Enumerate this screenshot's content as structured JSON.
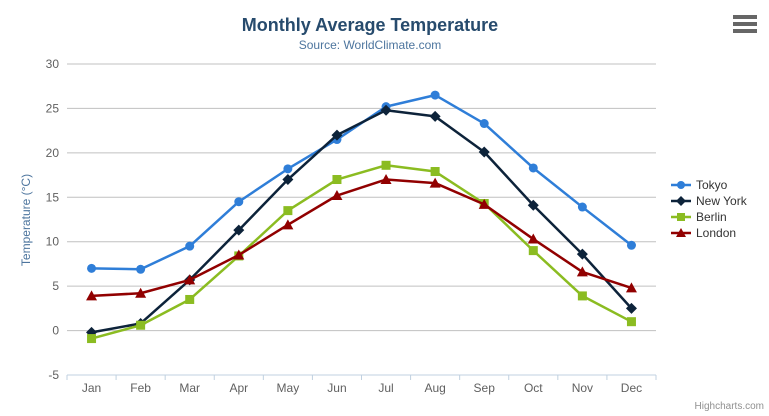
{
  "chart": {
    "title": "Monthly Average Temperature",
    "subtitle": "Source: WorldClimate.com",
    "credits": "Highcharts.com",
    "context_menu_icon": "hamburger-icon"
  },
  "colors": {
    "title": "#274b6d",
    "subtitle": "#4d759e",
    "axis_labels": "#606060",
    "y_axis_title": "#4d759e",
    "gridline": "#c0c0c0",
    "axis_line": "#c0d0e0",
    "legend_text": "#333333",
    "credits_text": "#909090",
    "hamburger": "#666666"
  },
  "chart_data": {
    "type": "line",
    "title": "Monthly Average Temperature",
    "subtitle": "Source: WorldClimate.com",
    "categories": [
      "Jan",
      "Feb",
      "Mar",
      "Apr",
      "May",
      "Jun",
      "Jul",
      "Aug",
      "Sep",
      "Oct",
      "Nov",
      "Dec"
    ],
    "series": [
      {
        "name": "Tokyo",
        "color": "#2f7ed8",
        "marker": "circle",
        "values": [
          7.0,
          6.9,
          9.5,
          14.5,
          18.2,
          21.5,
          25.2,
          26.5,
          23.3,
          18.3,
          13.9,
          9.6
        ]
      },
      {
        "name": "New York",
        "color": "#0d233a",
        "marker": "diamond",
        "values": [
          -0.2,
          0.8,
          5.7,
          11.3,
          17.0,
          22.0,
          24.8,
          24.1,
          20.1,
          14.1,
          8.6,
          2.5
        ]
      },
      {
        "name": "Berlin",
        "color": "#8bbc21",
        "marker": "square",
        "values": [
          -0.9,
          0.6,
          3.5,
          8.4,
          13.5,
          17.0,
          18.6,
          17.9,
          14.3,
          9.0,
          3.9,
          1.0
        ]
      },
      {
        "name": "London",
        "color": "#910000",
        "marker": "triangle",
        "values": [
          3.9,
          4.2,
          5.7,
          8.5,
          11.9,
          15.2,
          17.0,
          16.6,
          14.2,
          10.3,
          6.6,
          4.8
        ]
      }
    ],
    "xlabel": "",
    "ylabel": "Temperature (°C)",
    "ylim": [
      -5,
      30
    ],
    "yticks": [
      -5,
      0,
      5,
      10,
      15,
      20,
      25,
      30
    ],
    "grid": true,
    "legend_position": "right"
  }
}
